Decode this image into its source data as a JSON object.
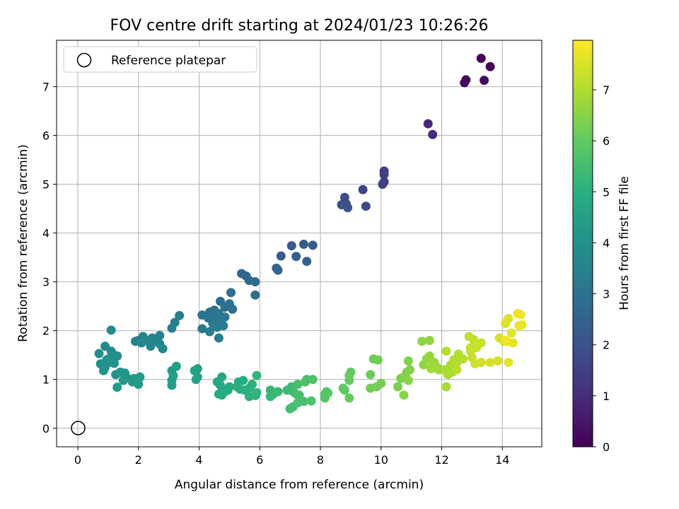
{
  "chart_data": {
    "type": "scatter",
    "title": "FOV centre drift starting at 2024/01/23 10:26:26",
    "xlabel": "Angular distance from reference (arcmin)",
    "ylabel": "Rotation from reference (arcmin)",
    "xlim": [
      -0.7,
      15.3
    ],
    "ylim": [
      -0.38,
      7.95
    ],
    "x_ticks": [
      0,
      2,
      4,
      6,
      8,
      10,
      12,
      14
    ],
    "y_ticks": [
      0,
      1,
      2,
      3,
      4,
      5,
      6,
      7
    ],
    "grid": true,
    "legend": {
      "placement": "top-left",
      "entries": [
        "Reference platepar"
      ]
    },
    "reference_point": {
      "x": 0,
      "y": 0
    },
    "colorbar": {
      "label": "Hours from first FF file",
      "range": [
        0,
        7.97
      ],
      "ticks": [
        0,
        1,
        2,
        3,
        4,
        5,
        6,
        7
      ],
      "colormap": "viridis"
    },
    "points": [
      [
        13.3,
        7.58,
        0.05
      ],
      [
        13.6,
        7.41,
        0.1
      ],
      [
        12.8,
        7.14,
        0.15
      ],
      [
        12.75,
        7.08,
        0.2
      ],
      [
        13.4,
        7.13,
        0.25
      ],
      [
        11.55,
        6.24,
        0.9
      ],
      [
        11.7,
        6.02,
        0.95
      ],
      [
        10.1,
        5.27,
        1.4
      ],
      [
        10.1,
        5.2,
        1.45
      ],
      [
        10.1,
        5.05,
        1.5
      ],
      [
        10.05,
        5.0,
        1.55
      ],
      [
        9.4,
        4.89,
        1.65
      ],
      [
        9.5,
        4.55,
        1.75
      ],
      [
        8.8,
        4.73,
        1.85
      ],
      [
        8.7,
        4.58,
        1.9
      ],
      [
        8.85,
        4.6,
        1.95
      ],
      [
        8.9,
        4.52,
        2.0
      ],
      [
        7.05,
        3.74,
        2.2
      ],
      [
        7.45,
        3.77,
        2.25
      ],
      [
        7.75,
        3.75,
        2.3
      ],
      [
        6.7,
        3.53,
        2.35
      ],
      [
        7.2,
        3.52,
        2.4
      ],
      [
        7.55,
        3.42,
        2.45
      ],
      [
        6.55,
        3.28,
        2.5
      ],
      [
        6.6,
        3.24,
        2.55
      ],
      [
        5.4,
        3.17,
        2.6
      ],
      [
        5.55,
        3.12,
        2.65
      ],
      [
        5.65,
        3.03,
        2.7
      ],
      [
        5.85,
        3.0,
        2.75
      ],
      [
        5.85,
        2.73,
        2.8
      ],
      [
        5.05,
        2.78,
        2.85
      ],
      [
        4.7,
        2.6,
        2.9
      ],
      [
        5.0,
        2.55,
        2.92
      ],
      [
        4.85,
        2.48,
        2.95
      ],
      [
        5.1,
        2.44,
        2.97
      ],
      [
        4.5,
        2.42,
        3.0
      ],
      [
        4.35,
        2.38,
        3.02
      ],
      [
        4.65,
        2.35,
        3.05
      ],
      [
        4.1,
        2.32,
        3.07
      ],
      [
        4.3,
        2.26,
        3.1
      ],
      [
        4.55,
        2.3,
        3.12
      ],
      [
        4.85,
        2.28,
        3.15
      ],
      [
        4.7,
        2.2,
        3.17
      ],
      [
        4.45,
        2.15,
        3.2
      ],
      [
        4.8,
        2.1,
        3.22
      ],
      [
        4.6,
        2.07,
        3.25
      ],
      [
        4.1,
        2.04,
        3.27
      ],
      [
        4.35,
        1.98,
        3.3
      ],
      [
        4.65,
        1.85,
        3.32
      ],
      [
        3.35,
        2.31,
        3.35
      ],
      [
        3.2,
        2.17,
        3.38
      ],
      [
        3.1,
        2.05,
        3.4
      ],
      [
        2.7,
        1.9,
        3.45
      ],
      [
        2.45,
        1.85,
        3.48
      ],
      [
        2.15,
        1.88,
        3.5
      ],
      [
        1.9,
        1.78,
        3.53
      ],
      [
        2.0,
        1.8,
        3.55
      ],
      [
        2.25,
        1.8,
        3.57
      ],
      [
        2.55,
        1.78,
        3.6
      ],
      [
        2.7,
        1.73,
        3.62
      ],
      [
        2.4,
        1.68,
        3.64
      ],
      [
        2.8,
        1.63,
        3.67
      ],
      [
        2.1,
        1.75,
        3.7
      ],
      [
        1.1,
        2.01,
        3.75
      ],
      [
        0.9,
        1.68,
        3.8
      ],
      [
        0.7,
        1.53,
        3.82
      ],
      [
        1.1,
        1.58,
        3.85
      ],
      [
        1.2,
        1.5,
        3.87
      ],
      [
        1.3,
        1.48,
        3.9
      ],
      [
        0.95,
        1.4,
        3.92
      ],
      [
        1.05,
        1.35,
        3.95
      ],
      [
        0.75,
        1.32,
        3.97
      ],
      [
        1.2,
        1.33,
        4.0
      ],
      [
        0.9,
        1.25,
        4.02
      ],
      [
        0.85,
        1.18,
        4.05
      ],
      [
        1.0,
        1.42,
        4.07
      ],
      [
        1.25,
        1.1,
        4.1
      ],
      [
        1.4,
        1.15,
        4.12
      ],
      [
        1.55,
        1.13,
        4.15
      ],
      [
        1.6,
        1.05,
        4.17
      ],
      [
        1.85,
        1.02,
        4.2
      ],
      [
        1.8,
        0.95,
        4.22
      ],
      [
        1.5,
        0.98,
        4.25
      ],
      [
        2.0,
        0.9,
        4.27
      ],
      [
        2.05,
        1.05,
        4.3
      ],
      [
        1.3,
        0.84,
        4.33
      ],
      [
        3.1,
        1.18,
        4.4
      ],
      [
        3.25,
        1.27,
        4.42
      ],
      [
        3.1,
        0.98,
        4.45
      ],
      [
        3.1,
        0.88,
        4.47
      ],
      [
        3.15,
        1.08,
        4.5
      ],
      [
        3.85,
        1.18,
        4.55
      ],
      [
        3.95,
        1.22,
        4.57
      ],
      [
        3.9,
        1.0,
        4.6
      ],
      [
        3.95,
        1.05,
        4.62
      ],
      [
        4.75,
        1.05,
        4.7
      ],
      [
        4.6,
        0.95,
        4.72
      ],
      [
        4.7,
        0.88,
        4.75
      ],
      [
        4.8,
        0.8,
        4.77
      ],
      [
        4.65,
        0.7,
        4.8
      ],
      [
        4.85,
        0.75,
        4.82
      ],
      [
        5.0,
        0.85,
        4.85
      ],
      [
        4.95,
        0.78,
        4.87
      ],
      [
        4.75,
        0.68,
        4.9
      ],
      [
        5.3,
        0.95,
        4.92
      ],
      [
        5.45,
        0.98,
        4.95
      ],
      [
        5.25,
        0.85,
        4.97
      ],
      [
        5.5,
        0.78,
        5.0
      ],
      [
        5.35,
        0.8,
        5.02
      ],
      [
        5.65,
        0.82,
        5.05
      ],
      [
        5.75,
        0.9,
        5.07
      ],
      [
        5.65,
        0.65,
        5.1
      ],
      [
        5.85,
        0.67,
        5.12
      ],
      [
        5.9,
        0.73,
        5.15
      ],
      [
        5.9,
        1.08,
        5.17
      ],
      [
        6.35,
        0.78,
        5.25
      ],
      [
        6.45,
        0.7,
        5.27
      ],
      [
        6.35,
        0.65,
        5.3
      ],
      [
        6.6,
        0.75,
        5.32
      ],
      [
        6.9,
        0.78,
        5.4
      ],
      [
        7.05,
        0.85,
        5.42
      ],
      [
        7.1,
        0.75,
        5.45
      ],
      [
        7.2,
        0.7,
        5.47
      ],
      [
        7.0,
        0.4,
        5.5
      ],
      [
        7.1,
        0.44,
        5.52
      ],
      [
        7.25,
        0.9,
        5.55
      ],
      [
        7.3,
        0.68,
        5.57
      ],
      [
        7.25,
        0.52,
        5.6
      ],
      [
        7.45,
        0.55,
        5.62
      ],
      [
        7.55,
        1.0,
        5.65
      ],
      [
        7.7,
        0.56,
        5.67
      ],
      [
        7.5,
        0.95,
        5.7
      ],
      [
        7.75,
        1.0,
        5.72
      ],
      [
        8.2,
        0.75,
        5.8
      ],
      [
        8.15,
        0.62,
        5.82
      ],
      [
        8.15,
        0.7,
        5.85
      ],
      [
        8.25,
        0.72,
        5.87
      ],
      [
        8.75,
        0.82,
        5.95
      ],
      [
        8.8,
        0.78,
        5.97
      ],
      [
        8.95,
        1.08,
        6.0
      ],
      [
        9.0,
        1.15,
        6.02
      ],
      [
        8.95,
        0.98,
        6.05
      ],
      [
        8.95,
        0.62,
        6.07
      ],
      [
        9.65,
        1.1,
        6.15
      ],
      [
        9.75,
        1.42,
        6.17
      ],
      [
        9.9,
        1.4,
        6.2
      ],
      [
        9.65,
        0.82,
        6.22
      ],
      [
        9.85,
        0.85,
        6.25
      ],
      [
        10.0,
        0.92,
        6.27
      ],
      [
        10.55,
        0.85,
        6.35
      ],
      [
        10.65,
        1.02,
        6.37
      ],
      [
        10.75,
        1.05,
        6.4
      ],
      [
        10.85,
        1.15,
        6.42
      ],
      [
        10.9,
        1.38,
        6.45
      ],
      [
        10.95,
        1.2,
        6.47
      ],
      [
        10.75,
        0.68,
        6.5
      ],
      [
        10.9,
        0.98,
        6.52
      ],
      [
        11.35,
        1.78,
        6.6
      ],
      [
        11.6,
        1.8,
        6.62
      ],
      [
        11.4,
        1.3,
        6.65
      ],
      [
        11.5,
        1.42,
        6.67
      ],
      [
        11.6,
        1.48,
        6.7
      ],
      [
        11.7,
        1.28,
        6.72
      ],
      [
        11.75,
        1.35,
        6.75
      ],
      [
        11.85,
        1.25,
        6.77
      ],
      [
        11.9,
        1.2,
        6.8
      ],
      [
        11.65,
        1.22,
        6.82
      ],
      [
        12.1,
        1.2,
        6.88
      ],
      [
        12.2,
        1.1,
        6.9
      ],
      [
        12.15,
        0.85,
        6.92
      ],
      [
        12.3,
        1.3,
        6.95
      ],
      [
        12.35,
        1.15,
        6.97
      ],
      [
        12.4,
        1.4,
        7.0
      ],
      [
        12.5,
        1.35,
        7.02
      ],
      [
        12.55,
        1.52,
        7.05
      ],
      [
        12.7,
        1.42,
        7.07
      ],
      [
        12.15,
        1.58,
        7.1
      ],
      [
        12.5,
        1.2,
        7.12
      ],
      [
        12.9,
        1.88,
        7.2
      ],
      [
        13.05,
        1.82,
        7.22
      ],
      [
        12.95,
        1.65,
        7.25
      ],
      [
        13.0,
        1.45,
        7.27
      ],
      [
        13.15,
        1.65,
        7.3
      ],
      [
        13.3,
        1.75,
        7.32
      ],
      [
        12.95,
        1.58,
        7.35
      ],
      [
        13.1,
        1.32,
        7.37
      ],
      [
        13.3,
        1.35,
        7.4
      ],
      [
        13.6,
        1.35,
        7.45
      ],
      [
        13.85,
        1.38,
        7.47
      ],
      [
        13.9,
        1.85,
        7.5
      ],
      [
        14.05,
        1.78,
        7.52
      ],
      [
        14.1,
        2.15,
        7.55
      ],
      [
        14.2,
        2.25,
        7.57
      ],
      [
        14.15,
        1.78,
        7.6
      ],
      [
        14.3,
        1.95,
        7.62
      ],
      [
        14.35,
        1.75,
        7.65
      ],
      [
        14.2,
        1.35,
        7.67
      ],
      [
        14.55,
        2.1,
        7.7
      ],
      [
        14.6,
        2.33,
        7.72
      ],
      [
        14.65,
        2.12,
        7.75
      ],
      [
        14.5,
        2.35,
        7.8
      ],
      [
        14.1,
        1.8,
        7.85
      ]
    ]
  }
}
